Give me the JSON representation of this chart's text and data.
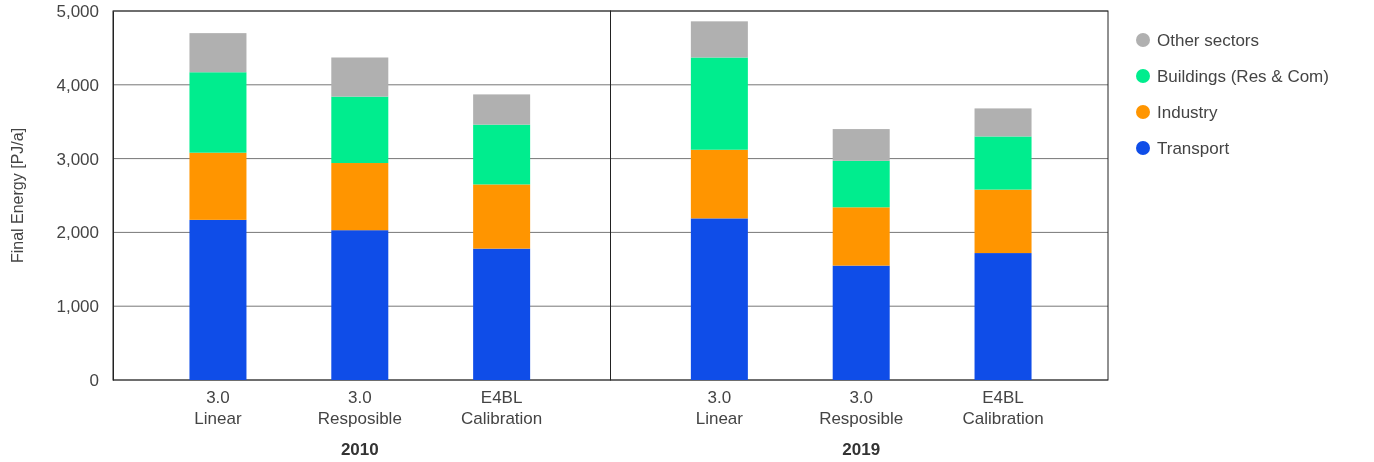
{
  "chart_data": {
    "type": "bar",
    "stacked": true,
    "ylabel": "Final Energy  [PJ/a]",
    "categories": [
      "3.0\nLinear",
      "3.0\nResposible",
      "E4BL\nCalibration",
      "3.0\nLinear",
      "3.0\nResposible",
      "E4BL\nCalibration"
    ],
    "annotations": [
      "2010",
      "2019"
    ],
    "series": [
      {
        "name": "Transport",
        "color": "#0f4de8",
        "values": [
          2170,
          2030,
          1780,
          2190,
          1550,
          1720
        ]
      },
      {
        "name": "Industry",
        "color": "#ff9500",
        "values": [
          910,
          910,
          870,
          930,
          790,
          860
        ]
      },
      {
        "name": "Buildings (Res & Com)",
        "color": "#00ed8e",
        "values": [
          1090,
          900,
          810,
          1250,
          630,
          720
        ]
      },
      {
        "name": "Other sectors",
        "color": "#b0b0b0",
        "values": [
          530,
          530,
          410,
          490,
          430,
          380
        ]
      }
    ],
    "ylim": [
      0,
      5000
    ],
    "yticks": [
      {
        "value": 0,
        "label": "0"
      },
      {
        "value": 1000,
        "label": "1,000"
      },
      {
        "value": 2000,
        "label": "2,000"
      },
      {
        "value": 3000,
        "label": "3,000"
      },
      {
        "value": 4000,
        "label": "4,000"
      },
      {
        "value": 5000,
        "label": "5,000"
      }
    ],
    "grid": "y",
    "legend": "right",
    "marker": "circle"
  }
}
